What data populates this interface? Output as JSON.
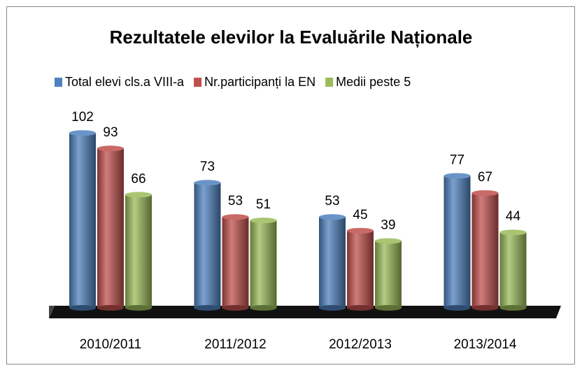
{
  "chart_data": {
    "type": "bar",
    "title": "Rezultatele elevilor la Evaluările Naționale",
    "categories": [
      "2010/2011",
      "2011/2012",
      "2012/2013",
      "2013/2014"
    ],
    "series": [
      {
        "name": "Total elevi cls.a VIII-a",
        "color": "#4f81bd",
        "values": [
          102,
          73,
          53,
          77
        ]
      },
      {
        "name": "Nr.participanți la EN",
        "color": "#c0504d",
        "values": [
          93,
          53,
          45,
          67
        ]
      },
      {
        "name": "Medii peste 5",
        "color": "#9bbb59",
        "values": [
          66,
          51,
          39,
          44
        ]
      }
    ],
    "legend": "top"
  }
}
